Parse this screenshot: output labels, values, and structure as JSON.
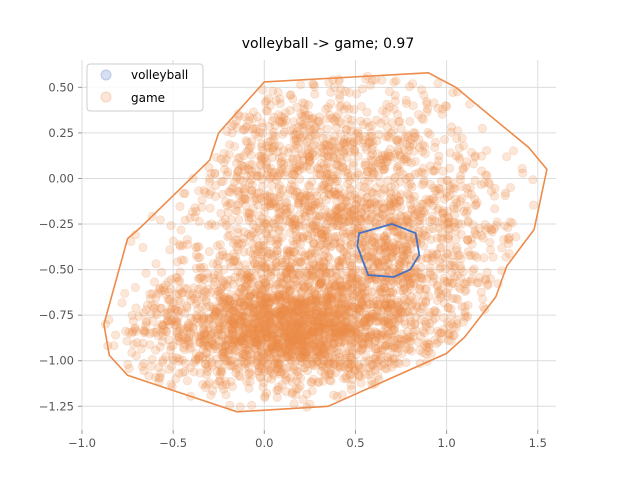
{
  "chart_data": {
    "type": "scatter",
    "title": "volleyball -> game; 0.97",
    "xlabel": "",
    "ylabel": "",
    "xlim": [
      -1.0,
      1.6
    ],
    "ylim": [
      -1.38,
      0.65
    ],
    "xticks": [
      -1.0,
      -0.5,
      0.0,
      0.5,
      1.0,
      1.5
    ],
    "xtick_labels": [
      "−1.0",
      "−0.5",
      "0.0",
      "0.5",
      "1.0",
      "1.5"
    ],
    "yticks": [
      0.5,
      0.25,
      0.0,
      -0.25,
      -0.5,
      -0.75,
      -1.0,
      -1.25
    ],
    "ytick_labels": [
      "0.50",
      "0.25",
      "0.00",
      "−0.25",
      "−0.50",
      "−0.75",
      "−1.00",
      "−1.25"
    ],
    "grid": true,
    "legend_position": "top-left",
    "series": [
      {
        "name": "volleyball",
        "color": "#4472C4",
        "hull": [
          [
            0.52,
            -0.3
          ],
          [
            0.7,
            -0.25
          ],
          [
            0.83,
            -0.3
          ],
          [
            0.85,
            -0.42
          ],
          [
            0.8,
            -0.5
          ],
          [
            0.71,
            -0.54
          ],
          [
            0.57,
            -0.53
          ],
          [
            0.51,
            -0.37
          ]
        ],
        "points": [
          [
            0.62,
            -0.35
          ],
          [
            0.7,
            -0.3
          ],
          [
            0.78,
            -0.38
          ],
          [
            0.66,
            -0.47
          ],
          [
            0.76,
            -0.46
          ],
          [
            0.57,
            -0.42
          ],
          [
            0.81,
            -0.4
          ],
          [
            0.72,
            -0.41
          ]
        ]
      },
      {
        "name": "game",
        "color": "#ED8B4A",
        "hull": [
          [
            0.0,
            0.53
          ],
          [
            0.9,
            0.58
          ],
          [
            1.05,
            0.5
          ],
          [
            1.45,
            0.17
          ],
          [
            1.55,
            0.05
          ],
          [
            1.48,
            -0.28
          ],
          [
            1.33,
            -0.48
          ],
          [
            1.27,
            -0.65
          ],
          [
            1.1,
            -0.87
          ],
          [
            1.0,
            -0.96
          ],
          [
            0.35,
            -1.25
          ],
          [
            -0.15,
            -1.28
          ],
          [
            -0.75,
            -1.08
          ],
          [
            -0.85,
            -0.97
          ],
          [
            -0.88,
            -0.8
          ],
          [
            -0.75,
            -0.33
          ],
          [
            -0.68,
            -0.27
          ],
          [
            -0.3,
            0.1
          ],
          [
            -0.25,
            0.25
          ]
        ],
        "n_points": 4200,
        "clusters": [
          {
            "mean": [
              0.1,
              -0.82
            ],
            "sd": [
              0.38,
              0.16
            ],
            "weight": 0.45
          },
          {
            "mean": [
              0.55,
              -0.45
            ],
            "sd": [
              0.42,
              0.3
            ],
            "weight": 0.3
          },
          {
            "mean": [
              0.3,
              0.05
            ],
            "sd": [
              0.45,
              0.28
            ],
            "weight": 0.25
          }
        ]
      }
    ]
  }
}
